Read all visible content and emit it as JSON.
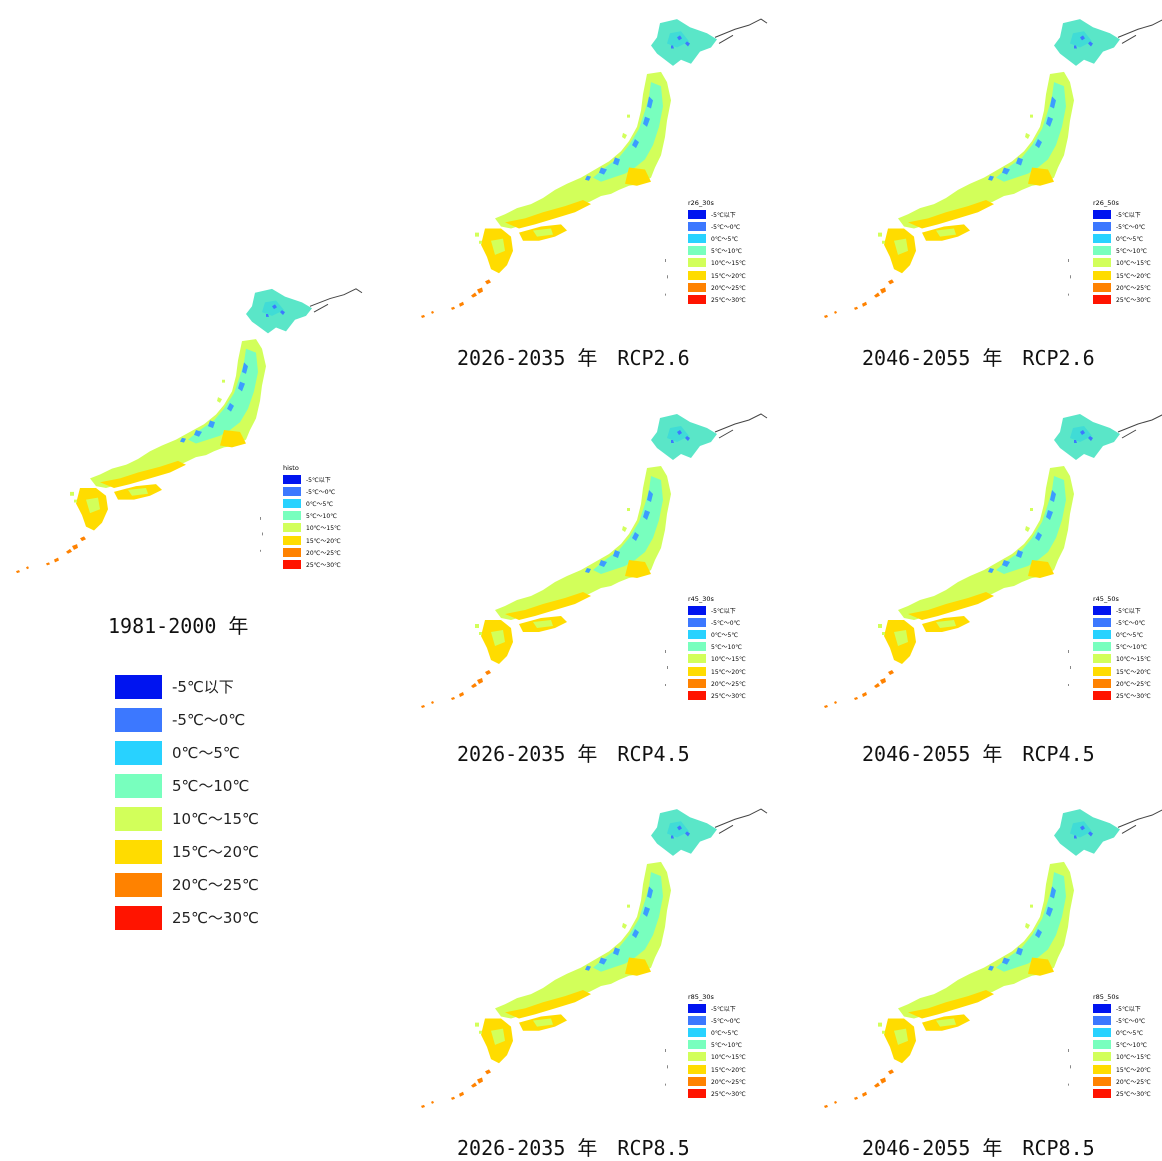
{
  "legend_items": [
    {
      "label": "-5℃以下",
      "color": "#0014f0"
    },
    {
      "label": "-5℃～0℃",
      "color": "#3c78ff"
    },
    {
      "label": "0℃～5℃",
      "color": "#28d2ff"
    },
    {
      "label": "5℃～10℃",
      "color": "#78ffbe"
    },
    {
      "label": "10℃～15℃",
      "color": "#d2ff5a"
    },
    {
      "label": "15℃～20℃",
      "color": "#ffdc00"
    },
    {
      "label": "20℃～25℃",
      "color": "#ff8200"
    },
    {
      "label": "25℃～30℃",
      "color": "#ff1400"
    }
  ],
  "mini_legend_labels": [
    "-5℃以下",
    "-5℃～0℃",
    "0℃～5℃",
    "5℃～10℃",
    "10℃～15℃",
    "15℃～20℃",
    "20℃～25℃",
    "25℃～30℃"
  ],
  "panels": [
    {
      "id": "histo",
      "legend_title": "histo",
      "caption": "1981-2000 年"
    },
    {
      "id": "r26_30s",
      "legend_title": "r26_30s",
      "caption": "2026-2035 年　RCP2.6"
    },
    {
      "id": "r26_50s",
      "legend_title": "r26_50s",
      "caption": "2046-2055 年　RCP2.6"
    },
    {
      "id": "r45_30s",
      "legend_title": "r45_30s",
      "caption": "2026-2035 年　RCP4.5"
    },
    {
      "id": "r45_50s",
      "legend_title": "r45_50s",
      "caption": "2046-2055 年　RCP4.5"
    },
    {
      "id": "r85_30s",
      "legend_title": "r85_30s",
      "caption": "2026-2035 年　RCP8.5"
    },
    {
      "id": "r85_50s",
      "legend_title": "r85_50s",
      "caption": "2046-2055 年　RCP8.5"
    }
  ]
}
